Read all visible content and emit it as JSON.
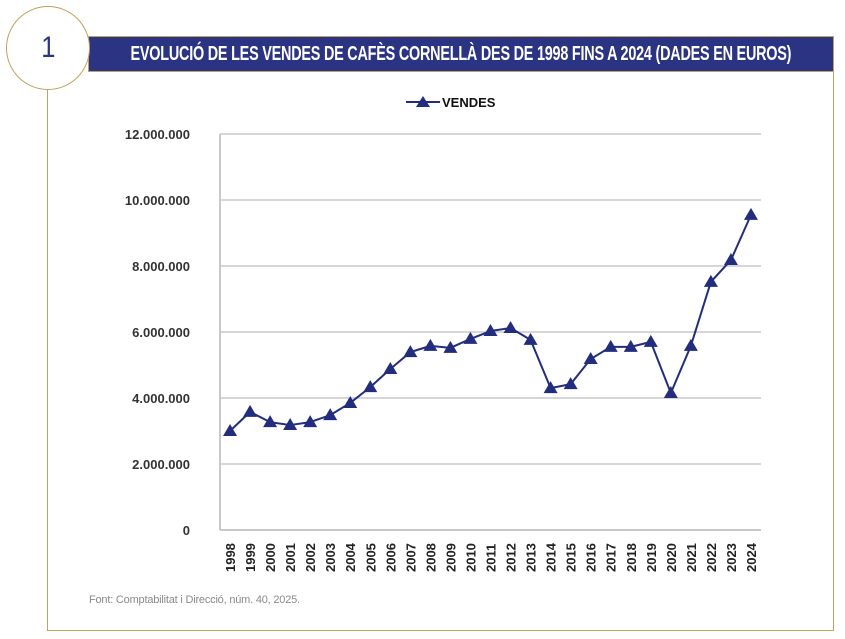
{
  "badge": {
    "number": "1"
  },
  "header": {
    "title": "Evolució de les vendes de Cafès Cornellà des de 1998 fins a 2024 (dades en euros)"
  },
  "source": "Font: Comptabilitat i Direcció, núm. 40, 2025.",
  "colors": {
    "series": "#232d7e",
    "title_bar": "#2b3482",
    "frame": "#c3a15e",
    "grid": "#c8c8c8"
  },
  "chart_data": {
    "type": "line",
    "title": "Evolució de les vendes de Cafès Cornellà des de 1998 fins a 2024 (dades en euros)",
    "xlabel": "",
    "ylabel": "",
    "ylim": [
      0,
      12000000
    ],
    "yticks": [
      0,
      2000000,
      4000000,
      6000000,
      8000000,
      10000000,
      12000000
    ],
    "ytick_labels": [
      "0",
      "2.000.000",
      "4.000.000",
      "6.000.000",
      "8.000.000",
      "10.000.000",
      "12.000.000"
    ],
    "grid": true,
    "legend": {
      "position": "top-center",
      "marker": "triangle"
    },
    "categories": [
      "1998",
      "1999",
      "2000",
      "2001",
      "2002",
      "2003",
      "2004",
      "2005",
      "2006",
      "2007",
      "2008",
      "2009",
      "2010",
      "2011",
      "2012",
      "2013",
      "2014",
      "2015",
      "2016",
      "2017",
      "2018",
      "2019",
      "2020",
      "2021",
      "2022",
      "2023",
      "2024"
    ],
    "series": [
      {
        "name": "VENDES",
        "values": [
          3000000,
          3580000,
          3270000,
          3180000,
          3270000,
          3480000,
          3850000,
          4330000,
          4880000,
          5390000,
          5580000,
          5520000,
          5790000,
          6030000,
          6120000,
          5760000,
          4300000,
          4420000,
          5180000,
          5550000,
          5550000,
          5700000,
          4150000,
          5580000,
          7520000,
          8180000,
          9550000
        ]
      }
    ]
  }
}
